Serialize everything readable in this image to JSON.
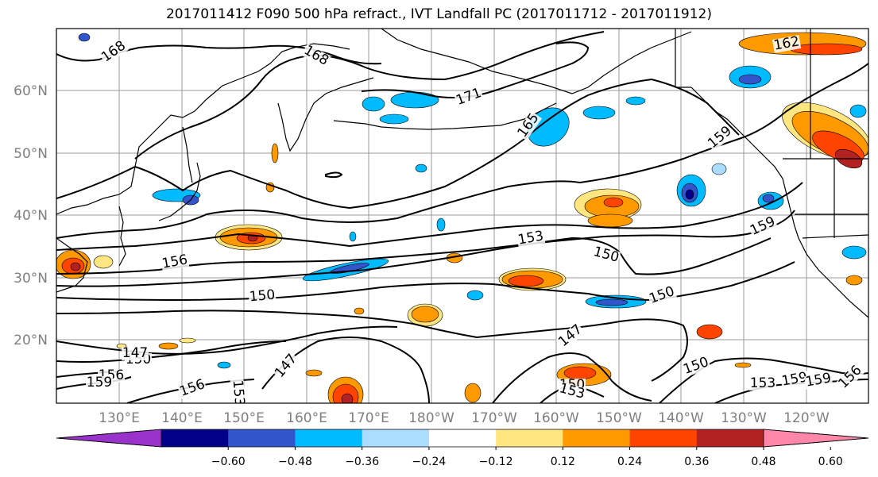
{
  "title": "2017011412 F090 500 hPa refract., IVT Landfall PC (2017011712 - 2017011912)",
  "map": {
    "lat_labels": [
      "60°N",
      "50°N",
      "40°N",
      "30°N",
      "20°N"
    ],
    "lon_labels": [
      "130°E",
      "140°E",
      "150°E",
      "160°E",
      "170°E",
      "180°W",
      "170°W",
      "160°W",
      "150°W",
      "140°W",
      "130°W",
      "120°W"
    ],
    "contour_labels": [
      "168",
      "168",
      "171",
      "162",
      "165",
      "159",
      "159",
      "153",
      "150",
      "156",
      "150",
      "150",
      "147",
      "147",
      "150",
      "156",
      "147",
      "153",
      "156",
      "159",
      "150",
      "153",
      "150",
      "153",
      "159",
      "159",
      "156"
    ]
  },
  "colorbar": {
    "colors": [
      "#9933cc",
      "#000088",
      "#3355cc",
      "#00bbff",
      "#aaddff",
      "#ffffff",
      "#ffe680",
      "#ff9900",
      "#ff4400",
      "#b22222",
      "#ff88aa"
    ],
    "tick_labels": [
      "−0.60",
      "−0.48",
      "−0.36",
      "−0.24",
      "−0.12",
      "0.12",
      "0.24",
      "0.36",
      "0.48",
      "0.60"
    ]
  }
}
